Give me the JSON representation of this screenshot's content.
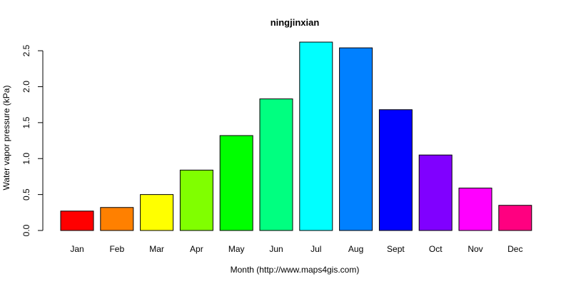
{
  "chart_data": {
    "type": "bar",
    "title": "ningjinxian",
    "xlabel": "Month (http://www.maps4gis.com)",
    "ylabel": "Water vapor pressure (kPa)",
    "categories": [
      "Jan",
      "Feb",
      "Mar",
      "Apr",
      "May",
      "Jun",
      "Jul",
      "Aug",
      "Sept",
      "Oct",
      "Nov",
      "Dec"
    ],
    "values": [
      0.27,
      0.32,
      0.5,
      0.84,
      1.32,
      1.83,
      2.62,
      2.54,
      1.68,
      1.05,
      0.59,
      0.35
    ],
    "colors": [
      "#ff0000",
      "#ff8000",
      "#ffff00",
      "#80ff00",
      "#00ff00",
      "#00ff80",
      "#00ffff",
      "#0080ff",
      "#0000ff",
      "#8000ff",
      "#ff00ff",
      "#ff0080"
    ],
    "yticks": [
      "0.0",
      "0.5",
      "1.0",
      "1.5",
      "2.0",
      "2.5"
    ],
    "ylim": [
      0,
      2.62
    ],
    "grid": false,
    "legend": "none"
  }
}
